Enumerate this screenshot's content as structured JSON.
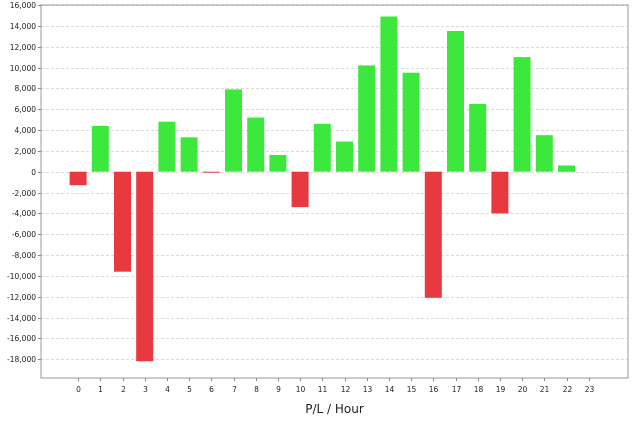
{
  "chart_data": {
    "type": "bar",
    "title": "",
    "xlabel": "P/L / Hour",
    "ylabel": "",
    "categories": [
      "0",
      "1",
      "2",
      "3",
      "4",
      "5",
      "6",
      "7",
      "8",
      "9",
      "10",
      "11",
      "12",
      "13",
      "14",
      "15",
      "16",
      "17",
      "18",
      "19",
      "20",
      "21",
      "22",
      "23"
    ],
    "values": [
      -1300,
      4400,
      -9600,
      -18200,
      4800,
      3300,
      -100,
      7900,
      5200,
      1600,
      -3400,
      4600,
      2900,
      10200,
      14900,
      9500,
      -12100,
      13500,
      6500,
      -4000,
      11000,
      3500,
      600,
      0
    ],
    "ylim": [
      -19800,
      16000
    ],
    "yticks": [
      16000,
      14000,
      12000,
      10000,
      8000,
      6000,
      4000,
      2000,
      0,
      -2000,
      -4000,
      -6000,
      -8000,
      -10000,
      -12000,
      -14000,
      -16000,
      -18000
    ],
    "ytick_labels": [
      "16,000",
      "14,000",
      "12,000",
      "10,000",
      "8,000",
      "6,000",
      "4,000",
      "2,000",
      "0",
      "-2,000",
      "-4,000",
      "-6,000",
      "-8,000",
      "-10,000",
      "-12,000",
      "-14,000",
      "-16,000",
      "-18,000"
    ],
    "grid": true,
    "legend": "none",
    "colors": {
      "positive": "#3be83b",
      "negative": "#e8393f",
      "grid": "#d9d9d9",
      "frame": "#999999"
    }
  }
}
